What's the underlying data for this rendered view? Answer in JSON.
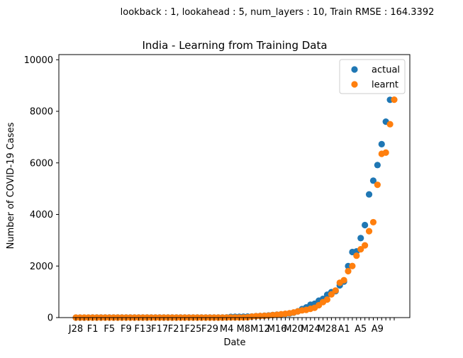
{
  "chart_data": {
    "type": "scatter",
    "suptitle": "lookback : 1, lookahead : 5, num_layers : 10, Train RMSE : 164.3392",
    "title": "India - Learning from Training Data",
    "xlabel": "Date",
    "ylabel": "Number of COVID-19 Cases",
    "ylim": [
      0,
      10200
    ],
    "yticks": [
      0,
      2000,
      4000,
      6000,
      8000,
      10000
    ],
    "x_start": 0,
    "x_end": 76,
    "xticks": [
      {
        "x": 0,
        "label": "J28"
      },
      {
        "x": 4,
        "label": "F1"
      },
      {
        "x": 8,
        "label": "F5"
      },
      {
        "x": 12,
        "label": "F9"
      },
      {
        "x": 16,
        "label": "F13"
      },
      {
        "x": 20,
        "label": "F17"
      },
      {
        "x": 24,
        "label": "F21"
      },
      {
        "x": 28,
        "label": "F25"
      },
      {
        "x": 32,
        "label": "F29"
      },
      {
        "x": 36,
        "label": "M4"
      },
      {
        "x": 40,
        "label": "M8"
      },
      {
        "x": 44,
        "label": "M12"
      },
      {
        "x": 48,
        "label": "M16"
      },
      {
        "x": 52,
        "label": "M20"
      },
      {
        "x": 56,
        "label": "M24"
      },
      {
        "x": 60,
        "label": "M28"
      },
      {
        "x": 64,
        "label": "A1"
      },
      {
        "x": 68,
        "label": "A5"
      },
      {
        "x": 72,
        "label": "A9"
      },
      {
        "x": 76,
        "label": ""
      }
    ],
    "legend_position": "top-right",
    "series": [
      {
        "name": "actual",
        "color": "#1f77b4",
        "values": [
          1,
          1,
          1,
          2,
          3,
          3,
          3,
          3,
          3,
          3,
          3,
          3,
          3,
          3,
          3,
          3,
          3,
          3,
          3,
          3,
          3,
          3,
          3,
          3,
          3,
          3,
          3,
          3,
          3,
          3,
          3,
          3,
          3,
          3,
          3,
          5,
          6,
          28,
          30,
          31,
          34,
          39,
          43,
          56,
          62,
          73,
          82,
          102,
          113,
          119,
          142,
          156,
          194,
          244,
          330,
          396,
          499,
          536,
          657,
          727,
          887,
          987,
          1024,
          1251,
          1397,
          1998,
          2543,
          2567,
          3082,
          3588,
          4778,
          5311,
          5916,
          6725,
          7598,
          8446
        ]
      },
      {
        "name": "learnt",
        "color": "#ff7f0e",
        "values": [
          1,
          1,
          1,
          1,
          1,
          1,
          1,
          1,
          1,
          1,
          1,
          1,
          1,
          1,
          1,
          1,
          1,
          1,
          1,
          1,
          1,
          1,
          1,
          1,
          1,
          1,
          1,
          1,
          1,
          1,
          1,
          1,
          1,
          1,
          1,
          1,
          2,
          3,
          3,
          4,
          5,
          10,
          40,
          55,
          62,
          70,
          78,
          98,
          110,
          130,
          150,
          170,
          200,
          240,
          280,
          300,
          340,
          380,
          480,
          600,
          700,
          900,
          1050,
          1350,
          1450,
          1800,
          2000,
          2400,
          2650,
          2800,
          3350,
          3700,
          5150,
          6350,
          6400,
          7500,
          8450
        ]
      }
    ]
  }
}
